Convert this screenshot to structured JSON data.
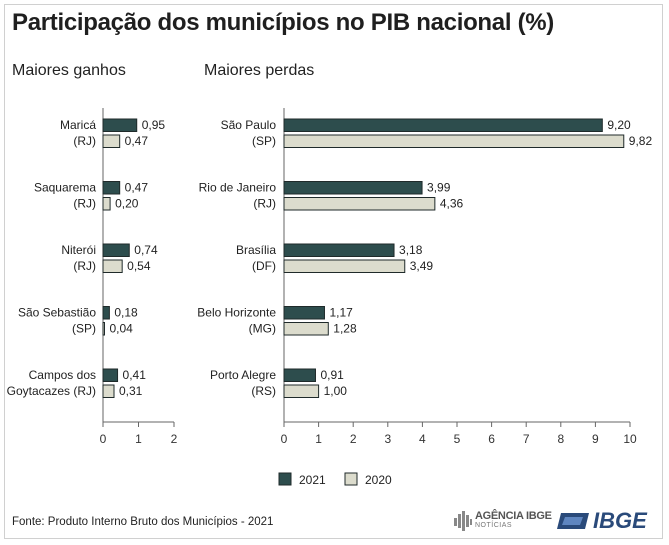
{
  "title": "Participação dos municípios no PIB nacional (%)",
  "source": "Fonte: Produto Interno Bruto dos Municípios - 2021",
  "logos": {
    "agencia_name": "AGÊNCIA IBGE",
    "agencia_sub": "NOTÍCIAS",
    "ibge": "IBGE"
  },
  "colors": {
    "series_2021": "#2d4d4d",
    "series_2020": "#dcdccd",
    "outline": "#1f2a2a",
    "axis": "#666666"
  },
  "chart_data": [
    {
      "type": "bar",
      "orientation": "horizontal",
      "title": "Maiores ganhos",
      "categories": [
        [
          "Maricá",
          "(RJ)"
        ],
        [
          "Saquarema",
          "(RJ)"
        ],
        [
          "Niterói",
          "(RJ)"
        ],
        [
          "São Sebastião",
          "(SP)"
        ],
        [
          "Campos dos",
          "Goytacazes (RJ)"
        ]
      ],
      "series": [
        {
          "name": "2021",
          "values": [
            0.95,
            0.47,
            0.74,
            0.18,
            0.41
          ],
          "labels": [
            "0,95",
            "0,47",
            "0,74",
            "0,18",
            "0,41"
          ]
        },
        {
          "name": "2020",
          "values": [
            0.47,
            0.2,
            0.54,
            0.04,
            0.31
          ],
          "labels": [
            "0,47",
            "0,20",
            "0,54",
            "0,04",
            "0,31"
          ]
        }
      ],
      "xlim": [
        0,
        2
      ],
      "xticks": [
        0,
        1,
        2
      ],
      "xtick_labels": [
        "0",
        "1",
        "2"
      ]
    },
    {
      "type": "bar",
      "orientation": "horizontal",
      "title": "Maiores perdas",
      "categories": [
        [
          "São Paulo",
          "(SP)"
        ],
        [
          "Rio de Janeiro",
          "(RJ)"
        ],
        [
          "Brasília",
          "(DF)"
        ],
        [
          "Belo Horizonte",
          "(MG)"
        ],
        [
          "Porto Alegre",
          "(RS)"
        ]
      ],
      "series": [
        {
          "name": "2021",
          "values": [
            9.2,
            3.99,
            3.18,
            1.17,
            0.91
          ],
          "labels": [
            "9,20",
            "3,99",
            "3,18",
            "1,17",
            "0,91"
          ]
        },
        {
          "name": "2020",
          "values": [
            9.82,
            4.36,
            3.49,
            1.28,
            1.0
          ],
          "labels": [
            "9,82",
            "4,36",
            "3,49",
            "1,28",
            "1,00"
          ]
        }
      ],
      "xlim": [
        0,
        10
      ],
      "xticks": [
        0,
        1,
        2,
        3,
        4,
        5,
        6,
        7,
        8,
        9,
        10
      ],
      "xtick_labels": [
        "0",
        "1",
        "2",
        "3",
        "4",
        "5",
        "6",
        "7",
        "8",
        "9",
        "10"
      ]
    }
  ],
  "legend": [
    {
      "label": "2021"
    },
    {
      "label": "2020"
    }
  ]
}
